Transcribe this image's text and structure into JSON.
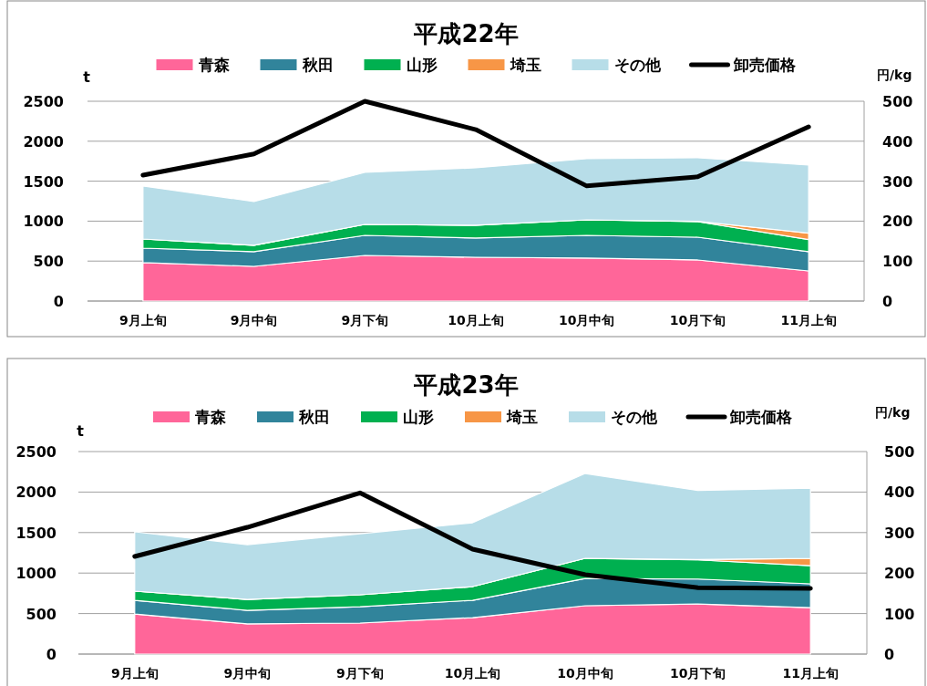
{
  "chart_data": [
    {
      "type": "area",
      "title": "平成22年",
      "ylabel": "t",
      "y2label": "円/kg",
      "stacked": true,
      "grid": "y",
      "legend": "top",
      "categories": [
        "9月上旬",
        "9月中旬",
        "9月下旬",
        "10月上旬",
        "10月中旬",
        "10月下旬",
        "11月上旬"
      ],
      "ylim": [
        0,
        2500
      ],
      "yticks": [
        0,
        500,
        1000,
        1500,
        2000,
        2500
      ],
      "y2lim": [
        0,
        500
      ],
      "y2ticks": [
        0,
        100,
        200,
        300,
        400,
        500
      ],
      "series": [
        {
          "name": "青森",
          "color": "#ff6699",
          "values": [
            480,
            434,
            571,
            548,
            537,
            514,
            377
          ]
        },
        {
          "name": "秋田",
          "color": "#31849b",
          "values": [
            182,
            183,
            251,
            240,
            285,
            285,
            240
          ]
        },
        {
          "name": "山形",
          "color": "#00b050",
          "values": [
            114,
            80,
            137,
            160,
            194,
            194,
            153
          ]
        },
        {
          "name": "埼玉",
          "color": "#f79646",
          "values": [
            0,
            0,
            0,
            0,
            0,
            5,
            80
          ]
        },
        {
          "name": "その他",
          "color": "#b7dde8",
          "values": [
            663,
            548,
            651,
            719,
            765,
            795,
            851
          ]
        },
        {
          "name": "卸売価格",
          "type": "line",
          "axis": "y2",
          "color": "#000000",
          "values": [
            315,
            368,
            500,
            429,
            288,
            311,
            436
          ]
        }
      ]
    },
    {
      "type": "area",
      "title": "平成23年",
      "ylabel": "t",
      "y2label": "円/kg",
      "stacked": true,
      "grid": "y",
      "legend": "top",
      "categories": [
        "9月上旬",
        "9月中旬",
        "9月下旬",
        "10月上旬",
        "10月中旬",
        "10月下旬",
        "11月上旬"
      ],
      "ylim": [
        0,
        2500
      ],
      "yticks": [
        0,
        500,
        1000,
        1500,
        2000,
        2500
      ],
      "y2lim": [
        0,
        500
      ],
      "y2ticks": [
        0,
        100,
        200,
        300,
        400,
        500
      ],
      "series": [
        {
          "name": "青森",
          "color": "#ff6699",
          "values": [
            495,
            372,
            383,
            450,
            597,
            619,
            574
          ]
        },
        {
          "name": "秋田",
          "color": "#31849b",
          "values": [
            169,
            168,
            202,
            214,
            337,
            307,
            293
          ]
        },
        {
          "name": "山形",
          "color": "#00b050",
          "values": [
            113,
            135,
            147,
            169,
            248,
            237,
            225
          ]
        },
        {
          "name": "埼玉",
          "color": "#f79646",
          "values": [
            0,
            0,
            0,
            0,
            0,
            5,
            90
          ]
        },
        {
          "name": "その他",
          "color": "#b7dde8",
          "values": [
            732,
            676,
            754,
            788,
            1047,
            851,
            867
          ]
        },
        {
          "name": "卸売価格",
          "type": "line",
          "axis": "y2",
          "color": "#000000",
          "values": [
            241,
            313,
            398,
            259,
            196,
            164,
            162
          ]
        }
      ]
    }
  ]
}
